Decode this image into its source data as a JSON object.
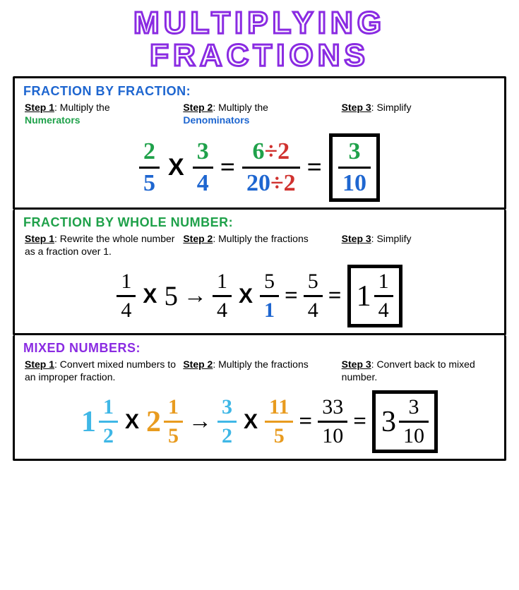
{
  "colors": {
    "title_outline": "#8a2be2",
    "green": "#1fa14a",
    "blue": "#1e66d0",
    "red": "#d0322f",
    "orange": "#e89b1f",
    "cyan": "#3fb7e6",
    "black": "#000000"
  },
  "title": {
    "line1": "MULTIPLYING",
    "line2": "FRACTIONS"
  },
  "sections": {
    "frac_by_frac": {
      "heading": "FRACTION BY FRACTION:",
      "heading_color": "#1e66d0",
      "steps": [
        {
          "label": "Step 1",
          "text_before": ": Multiply the ",
          "hl": "Numerators",
          "hl_color": "#1fa14a"
        },
        {
          "label": "Step 2",
          "text_before": ": Multiply the ",
          "hl": "Denominators",
          "hl_color": "#1e66d0"
        },
        {
          "label": "Step 3",
          "text_before": ": Simplify"
        }
      ],
      "eq": {
        "f1": {
          "num": "2",
          "num_color": "#1fa14a",
          "den": "5",
          "den_color": "#1e66d0"
        },
        "op1": "X",
        "f2": {
          "num": "3",
          "num_color": "#1fa14a",
          "den": "4",
          "den_color": "#1e66d0"
        },
        "sign1": "=",
        "f3": {
          "num_a": "6",
          "num_a_color": "#1fa14a",
          "num_div": "÷2",
          "num_div_color": "#d0322f",
          "den_a": "20",
          "den_a_color": "#1e66d0",
          "den_div": "÷2",
          "den_div_color": "#d0322f"
        },
        "sign2": "=",
        "answer": {
          "num": "3",
          "num_color": "#1fa14a",
          "den": "10",
          "den_color": "#1e66d0"
        }
      }
    },
    "frac_by_whole": {
      "heading": "FRACTION BY WHOLE NUMBER:",
      "heading_color": "#1fa14a",
      "steps": [
        {
          "label": "Step 1",
          "text_before": ": Rewrite the whole number as a fraction over 1."
        },
        {
          "label": "Step 2",
          "text_before": ": Multiply the fractions"
        },
        {
          "label": "Step 3",
          "text_before": ": Simplify"
        }
      ],
      "eq": {
        "f1": {
          "num": "1",
          "den": "4"
        },
        "op1": "X",
        "whole": "5",
        "arrow": "→",
        "f2": {
          "num": "1",
          "den": "4"
        },
        "op2": "X",
        "f3": {
          "num": "5",
          "den": "1",
          "den_color": "#1e66d0"
        },
        "sign1": "=",
        "f4": {
          "num": "5",
          "den": "4"
        },
        "sign2": "=",
        "answer": {
          "whole": "1",
          "num": "1",
          "den": "4"
        }
      }
    },
    "mixed": {
      "heading": "MIXED NUMBERS:",
      "heading_color": "#8a2be2",
      "steps": [
        {
          "label": "Step 1",
          "text_before": ": Convert mixed numbers to an improper fraction."
        },
        {
          "label": "Step 2",
          "text_before": ": Multiply the fractions"
        },
        {
          "label": "Step 3",
          "text_before": ": Convert back to mixed number."
        }
      ],
      "eq": {
        "m1": {
          "whole": "1",
          "num": "1",
          "den": "2",
          "color": "#3fb7e6"
        },
        "op1": "X",
        "m2": {
          "whole": "2",
          "num": "1",
          "den": "5",
          "color": "#e89b1f"
        },
        "arrow": "→",
        "f1": {
          "num": "3",
          "den": "2",
          "color": "#3fb7e6"
        },
        "op2": "X",
        "f2": {
          "num": "11",
          "den": "5",
          "color": "#e89b1f"
        },
        "sign1": "=",
        "f3": {
          "num": "33",
          "den": "10"
        },
        "sign2": "=",
        "answer": {
          "whole": "3",
          "num": "3",
          "den": "10"
        }
      }
    }
  }
}
